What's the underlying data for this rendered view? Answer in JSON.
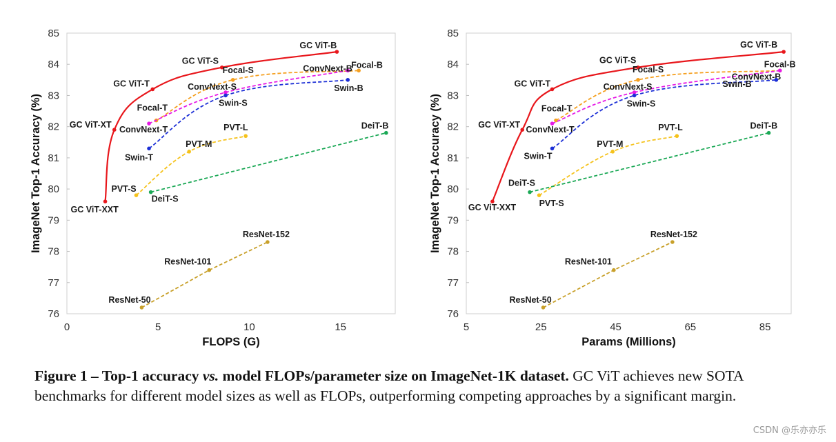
{
  "chart_data": [
    {
      "type": "scatter",
      "title": "",
      "xlabel": "FLOPS (G)",
      "ylabel": "ImageNet Top-1 Accuracy (%)",
      "xlim": [
        0,
        18
      ],
      "ylim": [
        76,
        85
      ],
      "xticks": [
        0,
        5,
        10,
        15
      ],
      "yticks": [
        76,
        77,
        78,
        79,
        80,
        81,
        82,
        83,
        84,
        85
      ],
      "series": [
        {
          "name": "GC ViT",
          "color": "#e8161b",
          "style": "solid",
          "smooth": true,
          "points": [
            {
              "x": 2.1,
              "y": 79.6,
              "label": "GC ViT-XXT"
            },
            {
              "x": 2.6,
              "y": 81.9,
              "label": "GC ViT-XT"
            },
            {
              "x": 4.7,
              "y": 83.2,
              "label": "GC ViT-T"
            },
            {
              "x": 8.5,
              "y": 83.9,
              "label": "GC ViT-S"
            },
            {
              "x": 14.8,
              "y": 84.4,
              "label": "GC ViT-B"
            }
          ]
        },
        {
          "name": "Focal",
          "color": "#f5a020",
          "style": "dashed",
          "smooth": true,
          "points": [
            {
              "x": 4.9,
              "y": 82.2,
              "label": "Focal-T"
            },
            {
              "x": 9.1,
              "y": 83.5,
              "label": "Focal-S"
            },
            {
              "x": 16.0,
              "y": 83.8,
              "label": "Focal-B"
            }
          ]
        },
        {
          "name": "ConvNext",
          "color": "#e619e6",
          "style": "dashed",
          "smooth": true,
          "points": [
            {
              "x": 4.5,
              "y": 82.1,
              "label": "ConvNext-T"
            },
            {
              "x": 8.7,
              "y": 83.1,
              "label": "ConvNext-S"
            },
            {
              "x": 15.4,
              "y": 83.8,
              "label": "ConvNext-B"
            }
          ]
        },
        {
          "name": "Swin",
          "color": "#1c2fd6",
          "style": "dashed",
          "smooth": true,
          "points": [
            {
              "x": 4.5,
              "y": 81.3,
              "label": "Swin-T"
            },
            {
              "x": 8.7,
              "y": 83.0,
              "label": "Swin-S"
            },
            {
              "x": 15.4,
              "y": 83.5,
              "label": "Swin-B"
            }
          ]
        },
        {
          "name": "PVT",
          "color": "#f5c21b",
          "style": "dashed",
          "smooth": true,
          "points": [
            {
              "x": 3.8,
              "y": 79.8,
              "label": "PVT-S"
            },
            {
              "x": 6.7,
              "y": 81.2,
              "label": "PVT-M"
            },
            {
              "x": 9.8,
              "y": 81.7,
              "label": "PVT-L"
            }
          ]
        },
        {
          "name": "DeiT",
          "color": "#1aa855",
          "style": "dashed",
          "smooth": false,
          "points": [
            {
              "x": 4.6,
              "y": 79.9,
              "label": "DeiT-S"
            },
            {
              "x": 17.5,
              "y": 81.8,
              "label": "DeiT-B"
            }
          ]
        },
        {
          "name": "ResNet",
          "color": "#c8a02a",
          "style": "dashed",
          "smooth": false,
          "points": [
            {
              "x": 4.1,
              "y": 76.2,
              "label": "ResNet-50"
            },
            {
              "x": 7.8,
              "y": 77.4,
              "label": "ResNet-101"
            },
            {
              "x": 11.0,
              "y": 78.3,
              "label": "ResNet-152"
            }
          ]
        }
      ]
    },
    {
      "type": "scatter",
      "title": "",
      "xlabel": "Params (Millions)",
      "ylabel": "ImageNet Top-1 Accuracy (%)",
      "xlim": [
        5,
        92
      ],
      "ylim": [
        76,
        85
      ],
      "xticks": [
        5,
        25,
        45,
        65,
        85
      ],
      "yticks": [
        76,
        77,
        78,
        79,
        80,
        81,
        82,
        83,
        84,
        85
      ],
      "series": [
        {
          "name": "GC ViT",
          "color": "#e8161b",
          "style": "solid",
          "smooth": true,
          "points": [
            {
              "x": 12,
              "y": 79.6,
              "label": "GC ViT-XXT"
            },
            {
              "x": 20,
              "y": 81.9,
              "label": "GC ViT-XT"
            },
            {
              "x": 28,
              "y": 83.2,
              "label": "GC ViT-T"
            },
            {
              "x": 51,
              "y": 83.9,
              "label": "GC ViT-S"
            },
            {
              "x": 90,
              "y": 84.4,
              "label": "GC ViT-B"
            }
          ]
        },
        {
          "name": "Focal",
          "color": "#f5a020",
          "style": "dashed",
          "smooth": true,
          "points": [
            {
              "x": 29,
              "y": 82.2,
              "label": "Focal-T"
            },
            {
              "x": 51,
              "y": 83.5,
              "label": "Focal-S"
            },
            {
              "x": 89,
              "y": 83.8,
              "label": "Focal-B"
            }
          ]
        },
        {
          "name": "ConvNext",
          "color": "#e619e6",
          "style": "dashed",
          "smooth": true,
          "points": [
            {
              "x": 28,
              "y": 82.1,
              "label": "ConvNext-T"
            },
            {
              "x": 50,
              "y": 83.1,
              "label": "ConvNext-S"
            },
            {
              "x": 89,
              "y": 83.8,
              "label": "ConvNext-B"
            }
          ]
        },
        {
          "name": "Swin",
          "color": "#1c2fd6",
          "style": "dashed",
          "smooth": true,
          "points": [
            {
              "x": 28,
              "y": 81.3,
              "label": "Swin-T"
            },
            {
              "x": 50,
              "y": 83.0,
              "label": "Swin-S"
            },
            {
              "x": 88,
              "y": 83.5,
              "label": "Swin-B"
            }
          ]
        },
        {
          "name": "PVT",
          "color": "#f5c21b",
          "style": "dashed",
          "smooth": true,
          "points": [
            {
              "x": 24.5,
              "y": 79.8,
              "label": "PVT-S"
            },
            {
              "x": 44.2,
              "y": 81.2,
              "label": "PVT-M"
            },
            {
              "x": 61.4,
              "y": 81.7,
              "label": "PVT-L"
            }
          ]
        },
        {
          "name": "DeiT",
          "color": "#1aa855",
          "style": "dashed",
          "smooth": false,
          "points": [
            {
              "x": 22,
              "y": 79.9,
              "label": "DeiT-S"
            },
            {
              "x": 86,
              "y": 81.8,
              "label": "DeiT-B"
            }
          ]
        },
        {
          "name": "ResNet",
          "color": "#c8a02a",
          "style": "dashed",
          "smooth": false,
          "points": [
            {
              "x": 25.6,
              "y": 76.2,
              "label": "ResNet-50"
            },
            {
              "x": 44.5,
              "y": 77.4,
              "label": "ResNet-101"
            },
            {
              "x": 60.2,
              "y": 78.3,
              "label": "ResNet-152"
            }
          ]
        }
      ]
    }
  ],
  "caption": {
    "bold_part1": "Figure 1 – Top-1 accuracy ",
    "italic_part": "vs.",
    "bold_part2": " model FLOPs/parameter size on ImageNet-1K dataset.",
    "normal_part": " GC ViT achieves new SOTA benchmarks for different model sizes as well as FLOPs, outperforming competing approaches by a significant margin."
  },
  "watermark": "CSDN @乐亦亦乐"
}
